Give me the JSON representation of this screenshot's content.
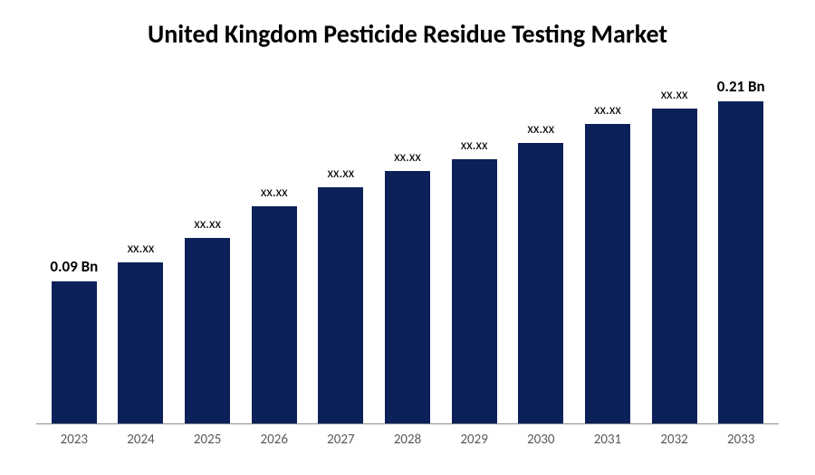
{
  "chart": {
    "type": "bar",
    "title": "United Kingdom Pesticide Residue Testing Market",
    "title_fontsize": 28,
    "title_fontweight": 700,
    "title_color": "#000000",
    "background_color": "#ffffff",
    "bar_color": "#0c2159",
    "axis_line_color": "#8c8c8c",
    "x_label_color": "#595959",
    "x_label_fontsize": 15,
    "value_label_color": "#000000",
    "value_label_fontsize": 15,
    "value_label_bold_fontsize": 17,
    "bar_width_pct": 68,
    "ylim": [
      0,
      0.22
    ],
    "categories": [
      "2023",
      "2024",
      "2025",
      "2026",
      "2027",
      "2028",
      "2029",
      "2030",
      "2031",
      "2032",
      "2033"
    ],
    "values": [
      0.09,
      0.102,
      0.118,
      0.138,
      0.15,
      0.16,
      0.168,
      0.178,
      0.19,
      0.2,
      0.21
    ],
    "value_labels": [
      "0.09 Bn",
      "xx.xx",
      "xx.xx",
      "xx.xx",
      "xx.xx",
      "xx.xx",
      "xx.xx",
      "xx.xx",
      "xx.xx",
      "xx.xx",
      "0.21 Bn"
    ],
    "value_label_bold": [
      true,
      false,
      false,
      false,
      false,
      false,
      false,
      false,
      false,
      false,
      true
    ]
  }
}
